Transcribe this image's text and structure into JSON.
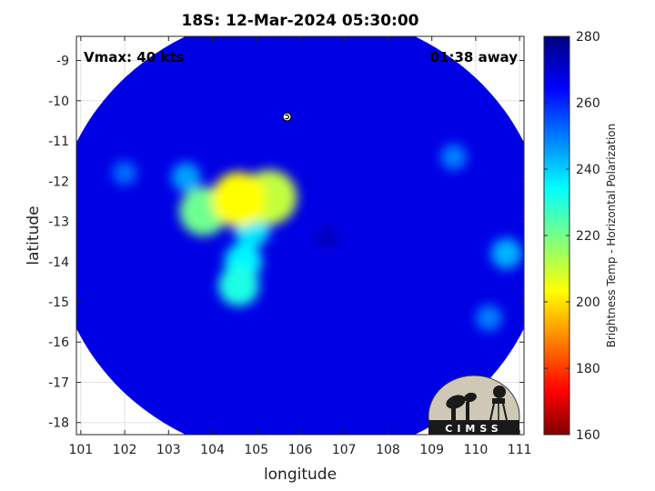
{
  "chart_data": {
    "type": "heatmap",
    "title": "18S: 12-Mar-2024 05:30:00",
    "xlabel": "longitude",
    "ylabel": "latitude",
    "xlim": [
      100.9,
      111.1
    ],
    "ylim": [
      -18.3,
      -8.4
    ],
    "xticks": [
      101,
      102,
      103,
      104,
      105,
      106,
      107,
      108,
      109,
      110,
      111
    ],
    "yticks": [
      -9,
      -10,
      -11,
      -12,
      -13,
      -14,
      -15,
      -16,
      -17,
      -18
    ],
    "grid": true,
    "annotations": {
      "vmax": "Vmax: 40 kts",
      "time_away": "01:38 away"
    },
    "storm_center": {
      "lon": 105.7,
      "lat": -10.4
    },
    "colorbar": {
      "label": "Brightness Temp - Horizontal Polarization",
      "range": [
        160,
        280
      ],
      "ticks": [
        160,
        180,
        200,
        220,
        240,
        260,
        280
      ],
      "colormap": "jet"
    },
    "field": {
      "swath_center": {
        "lon": 106.0,
        "lat": -13.35
      },
      "swath_radius_deg": 5.6,
      "background_value": 268,
      "features": [
        {
          "lon": 104.6,
          "lat": -12.45,
          "value": 205
        },
        {
          "lon": 105.3,
          "lat": -12.4,
          "value": 212
        },
        {
          "lon": 103.8,
          "lat": -12.75,
          "value": 222
        },
        {
          "lon": 104.9,
          "lat": -13.2,
          "value": 238
        },
        {
          "lon": 104.7,
          "lat": -14.0,
          "value": 236
        },
        {
          "lon": 104.6,
          "lat": -14.6,
          "value": 232
        },
        {
          "lon": 103.4,
          "lat": -11.9,
          "value": 246
        },
        {
          "lon": 102.0,
          "lat": -11.8,
          "value": 252
        },
        {
          "lon": 106.6,
          "lat": -13.4,
          "value": 273
        },
        {
          "lon": 110.7,
          "lat": -13.8,
          "value": 244
        },
        {
          "lon": 109.5,
          "lat": -11.4,
          "value": 250
        },
        {
          "lon": 110.3,
          "lat": -15.4,
          "value": 250
        }
      ]
    }
  },
  "logo": {
    "text": "CIMSS"
  }
}
